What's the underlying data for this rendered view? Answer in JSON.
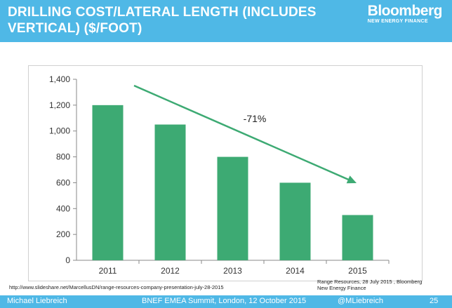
{
  "slide": {
    "title": "DRILLING COST/LATERAL LENGTH (INCLUDES\nVERTICAL) ($/FOOT)",
    "logo_main": "Bloomberg",
    "logo_sub": "NEW ENERGY FINANCE",
    "source_left": "http://www.slideshare.net/MarcellusDN/range-resources-company-presentation-july-28-2015",
    "source_right": "Range Resources, 28 July 2015 , Bloomberg\nNew Energy Finance",
    "footer": {
      "author": "Michael Liebreich",
      "event": "BNEF EMEA Summit, London, 12 October 2015",
      "handle": "@MLiebreich",
      "page": "25"
    }
  },
  "colors": {
    "header_blue": "#4fb8e6",
    "bar_green": "#3daa73",
    "arrow_green": "#3daa73"
  },
  "chart_data": {
    "type": "bar",
    "categories": [
      "2011",
      "2012",
      "2013",
      "2014",
      "2015"
    ],
    "values": [
      1200,
      1050,
      800,
      600,
      350
    ],
    "ylim": [
      0,
      1400
    ],
    "yticks": [
      0,
      200,
      400,
      600,
      800,
      1000,
      1200,
      1400
    ],
    "ytick_labels": [
      "0",
      "200",
      "400",
      "600",
      "800",
      "1,000",
      "1,200",
      "1,400"
    ],
    "title": "",
    "xlabel": "",
    "ylabel": "",
    "grid": false,
    "annotation": "-71%"
  }
}
